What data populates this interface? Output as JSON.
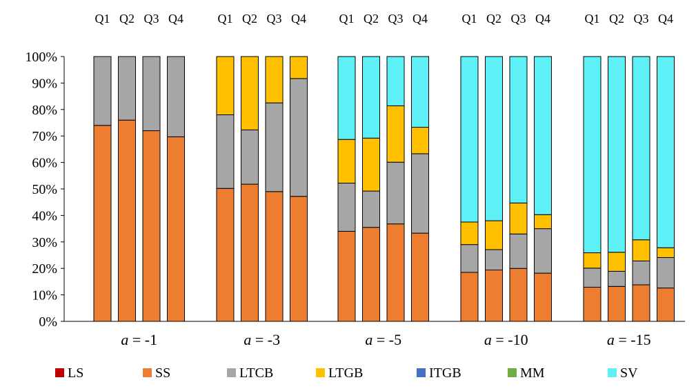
{
  "chart_data": {
    "type": "bar",
    "stacked": true,
    "normalized": true,
    "ylim": [
      0,
      100
    ],
    "yticks": [
      0,
      10,
      20,
      30,
      40,
      50,
      60,
      70,
      80,
      90,
      100
    ],
    "ytick_labels": [
      "0%",
      "10%",
      "20%",
      "30%",
      "40%",
      "50%",
      "60%",
      "70%",
      "80%",
      "90%",
      "100%"
    ],
    "grid": false,
    "legend_position": "bottom",
    "quarters": [
      "Q1",
      "Q2",
      "Q3",
      "Q4"
    ],
    "groups": [
      {
        "label_italic": "a",
        "label_rest": " = -1"
      },
      {
        "label_italic": "a",
        "label_rest": " = -3"
      },
      {
        "label_italic": "a",
        "label_rest": " = -5"
      },
      {
        "label_italic": "a",
        "label_rest": " = -10"
      },
      {
        "label_italic": "a",
        "label_rest": " = -15"
      }
    ],
    "series": [
      {
        "name": "LS",
        "color": "#c00000",
        "values": [
          [
            0,
            0,
            0,
            0
          ],
          [
            0,
            0,
            0,
            0
          ],
          [
            0,
            0,
            0,
            0
          ],
          [
            0,
            0,
            0,
            0
          ],
          [
            0,
            0,
            0,
            0
          ]
        ]
      },
      {
        "name": "SS",
        "color": "#ed7d31",
        "values": [
          [
            74,
            76,
            72,
            69.7
          ],
          [
            50.2,
            51.8,
            49,
            47.2
          ],
          [
            34,
            35.5,
            36.8,
            33.3
          ],
          [
            18.5,
            19.4,
            20,
            18.2
          ],
          [
            12.9,
            13.2,
            13.8,
            12.6
          ]
        ]
      },
      {
        "name": "LTCB",
        "color": "#a6a6a6",
        "values": [
          [
            26,
            24,
            28,
            30.3
          ],
          [
            27.8,
            20.5,
            33.5,
            44.5
          ],
          [
            18.2,
            13.7,
            23.3,
            30
          ],
          [
            10.5,
            7.7,
            13,
            16.8
          ],
          [
            7.2,
            5.7,
            9,
            11.5
          ]
        ]
      },
      {
        "name": "LTGB",
        "color": "#ffc000",
        "values": [
          [
            0,
            0,
            0,
            0
          ],
          [
            22,
            27.7,
            17.5,
            8.3
          ],
          [
            16.5,
            20,
            21.3,
            10
          ],
          [
            8.5,
            10.9,
            11.7,
            5.3
          ],
          [
            5.8,
            7.2,
            8,
            3.7
          ]
        ]
      },
      {
        "name": "ITGB",
        "color": "#4472c4",
        "values": [
          [
            0,
            0,
            0,
            0
          ],
          [
            0,
            0,
            0,
            0
          ],
          [
            0,
            0,
            0,
            0
          ],
          [
            0,
            0,
            0,
            0
          ],
          [
            0,
            0,
            0,
            0
          ]
        ]
      },
      {
        "name": "MM",
        "color": "#70ad47",
        "values": [
          [
            0,
            0,
            0,
            0
          ],
          [
            0,
            0,
            0,
            0
          ],
          [
            0,
            0,
            0,
            0
          ],
          [
            0,
            0,
            0,
            0
          ],
          [
            0,
            0,
            0,
            0
          ]
        ]
      },
      {
        "name": "SV",
        "color": "#5ef0f7",
        "values": [
          [
            0,
            0,
            0,
            0
          ],
          [
            0,
            0,
            0,
            0
          ],
          [
            31.3,
            30.8,
            18.6,
            26.7
          ],
          [
            62.5,
            62,
            55.3,
            59.7
          ],
          [
            74.1,
            73.9,
            69.2,
            72.2
          ]
        ]
      }
    ]
  }
}
